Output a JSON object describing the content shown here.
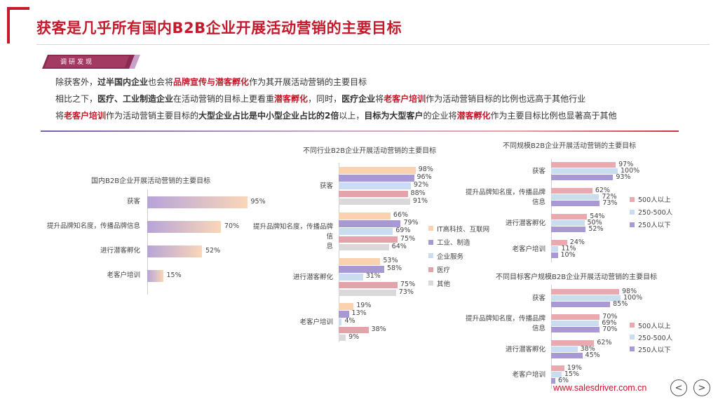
{
  "header": {
    "title": "获客是几乎所有国内B2B企业开展活动营销的主要目标",
    "tag": "调研发现"
  },
  "summary": [
    [
      {
        "t": "除获客外，",
        "s": "n"
      },
      {
        "t": "过半国内企业",
        "s": "b"
      },
      {
        "t": "也会将",
        "s": "n"
      },
      {
        "t": "品牌宣传与潜客孵化",
        "s": "r"
      },
      {
        "t": "作为其开展活动营销的主要目标",
        "s": "n"
      }
    ],
    [
      {
        "t": "相比之下，",
        "s": "n"
      },
      {
        "t": "医疗、工业制造企业",
        "s": "b"
      },
      {
        "t": "在活动营销的目标上更看重",
        "s": "n"
      },
      {
        "t": "潜客孵化",
        "s": "r"
      },
      {
        "t": "，同时，",
        "s": "n"
      },
      {
        "t": "医疗企业",
        "s": "b"
      },
      {
        "t": "将",
        "s": "n"
      },
      {
        "t": "老客户培训",
        "s": "r"
      },
      {
        "t": "作为活动营销目标的比例也远高于其他行业",
        "s": "n"
      }
    ],
    [
      {
        "t": "将",
        "s": "n"
      },
      {
        "t": "老客户培训",
        "s": "r"
      },
      {
        "t": "作为活动营销主要目标的",
        "s": "n"
      },
      {
        "t": "大型企业占比是中小型企业占比的2倍",
        "s": "b"
      },
      {
        "t": "以上，",
        "s": "n"
      },
      {
        "t": "目标为大型客户",
        "s": "b"
      },
      {
        "t": "的企业将",
        "s": "n"
      },
      {
        "t": "潜客孵化",
        "s": "r"
      },
      {
        "t": "作为主要目标比例也显著高于其他",
        "s": "n"
      }
    ]
  ],
  "chart_data": [
    {
      "type": "bar",
      "orientation": "horizontal",
      "title": "国内B2B企业开展活动营销的主要目标",
      "categories": [
        "获客",
        "提升品牌知名度，传播品牌信息",
        "进行潜客孵化",
        "老客户培训"
      ],
      "values": [
        95,
        70,
        52,
        15
      ],
      "value_labels": [
        "95%",
        "70%",
        "52%",
        "15%"
      ],
      "gradient": [
        "#b6a4d8",
        "#fad6b8"
      ]
    },
    {
      "type": "bar",
      "orientation": "horizontal",
      "title": "不同行业B2B企业开展活动营销的主要目标",
      "categories": [
        "获客",
        "提升品牌知名度，传播品牌信息",
        "进行潜客孵化",
        "老客户培训"
      ],
      "series": [
        {
          "name": "IT高科技、互联网",
          "color": "#fad2b0",
          "values": [
            98,
            66,
            53,
            19
          ],
          "labels": [
            "98%",
            "66%",
            "53%",
            "19%"
          ]
        },
        {
          "name": "工业、制造",
          "color": "#a898d4",
          "values": [
            96,
            79,
            58,
            13
          ],
          "labels": [
            "96%",
            "79%",
            "58%",
            "13%"
          ]
        },
        {
          "name": "企业服务",
          "color": "#c9dcf0",
          "values": [
            92,
            69,
            31,
            4
          ],
          "labels": [
            "92%",
            "69%",
            "31%",
            "4%"
          ]
        },
        {
          "name": "医疗",
          "color": "#e4a2aa",
          "values": [
            88,
            75,
            75,
            38
          ],
          "labels": [
            "88%",
            "75%",
            "75%",
            "38%"
          ]
        },
        {
          "name": "其他",
          "color": "#d9d9d9",
          "values": [
            91,
            64,
            73,
            9
          ],
          "labels": [
            "91%",
            "64%",
            "73%",
            "9%"
          ]
        }
      ]
    },
    {
      "type": "bar",
      "orientation": "horizontal",
      "title": "不同规模B2B企业开展活动营销的主要目标",
      "categories": [
        "获客",
        "提升品牌知名度，传播品牌信息",
        "进行潜客孵化",
        "老客户培训"
      ],
      "series": [
        {
          "name": "500人以上",
          "color": "#e9a9ae",
          "values": [
            97,
            62,
            54,
            24
          ],
          "labels": [
            "97%",
            "62%",
            "54%",
            "24%"
          ]
        },
        {
          "name": "250-500人",
          "color": "#c9dcf0",
          "values": [
            100,
            72,
            50,
            11
          ],
          "labels": [
            "100%",
            "72%",
            "50%",
            "11%"
          ]
        },
        {
          "name": "250人以下",
          "color": "#a898d4",
          "values": [
            93,
            73,
            52,
            10
          ],
          "labels": [
            "93%",
            "73%",
            "52%",
            "10%"
          ]
        }
      ]
    },
    {
      "type": "bar",
      "orientation": "horizontal",
      "title": "不同目标客户规模B2B企业开展活动营销的主要目标",
      "categories": [
        "获客",
        "提升品牌知名度，传播品牌信息",
        "进行潜客孵化",
        "老客户培训"
      ],
      "series": [
        {
          "name": "500人以上",
          "color": "#e9a9ae",
          "values": [
            98,
            70,
            62,
            19
          ],
          "labels": [
            "98%",
            "70%",
            "62%",
            "19%"
          ]
        },
        {
          "name": "250-500人",
          "color": "#c9dcf0",
          "values": [
            100,
            69,
            38,
            15
          ],
          "labels": [
            "100%",
            "69%",
            "38%",
            "15%"
          ]
        },
        {
          "name": "250人以下",
          "color": "#a898d4",
          "values": [
            85,
            70,
            45,
            6
          ],
          "labels": [
            "85%",
            "70%",
            "45%",
            "6%"
          ]
        }
      ]
    }
  ],
  "footer": {
    "website": "www.salesdriver.com.cn",
    "prev_icon": "chevron-left-icon",
    "next_icon": "chevron-right-icon",
    "prev_glyph": "<",
    "next_glyph": ">"
  },
  "colors": {
    "brand_red": "#c41a2c"
  }
}
